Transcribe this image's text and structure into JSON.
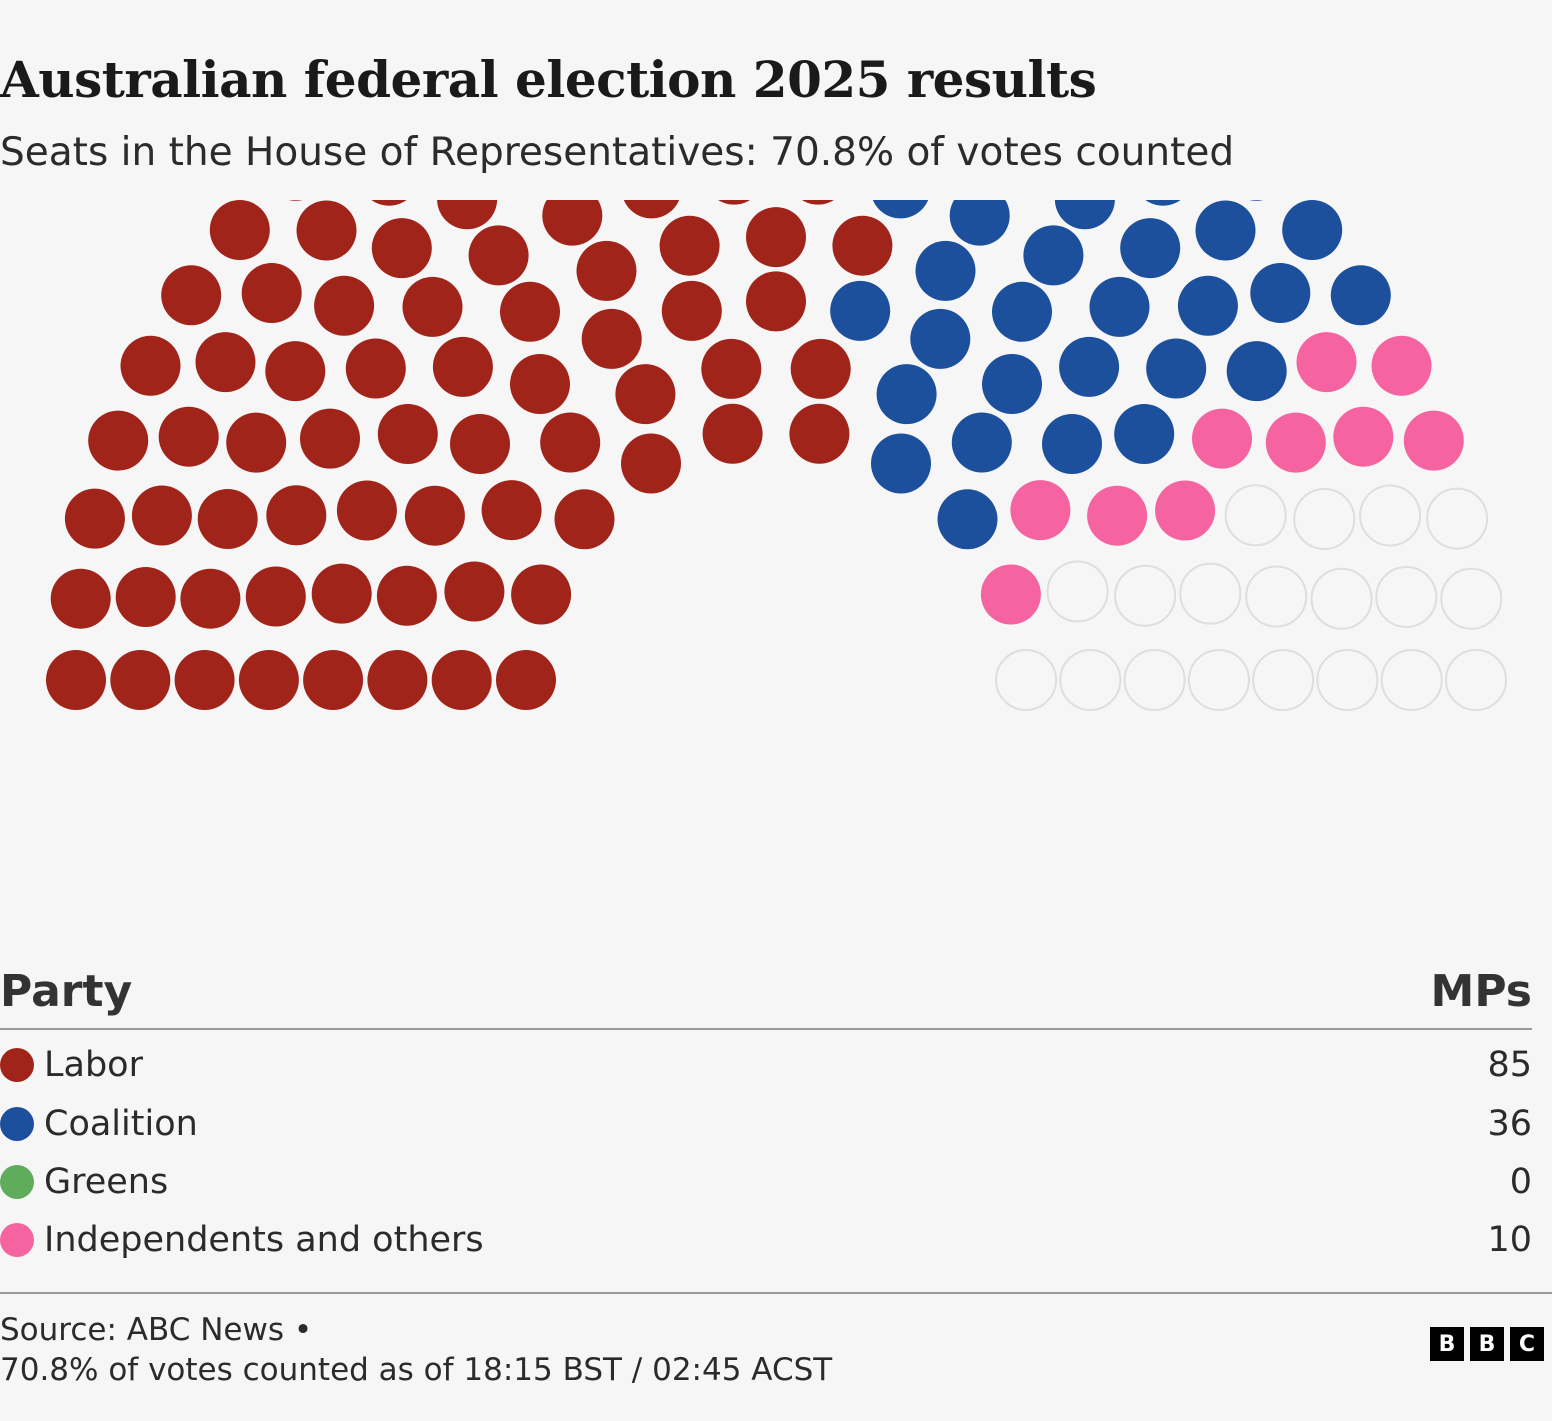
{
  "header": {
    "title": "Australian federal election 2025 results",
    "subtitle": "Seats in the House of Representatives: 70.8% of votes counted"
  },
  "legend": {
    "party_header": "Party",
    "mps_header": "MPs"
  },
  "chart_data": {
    "type": "parliament",
    "title": "Australian federal election 2025 results",
    "subtitle": "Seats in the House of Representatives: 70.8% of votes counted",
    "total_seats": 150,
    "series": [
      {
        "name": "Labor",
        "value": 85,
        "color": "#a1241a"
      },
      {
        "name": "Coalition",
        "value": 36,
        "color": "#1c4f9c"
      },
      {
        "name": "Greens",
        "value": 0,
        "color": "#5eac5c"
      },
      {
        "name": "Independents and others",
        "value": 10,
        "color": "#f564a0"
      }
    ],
    "undeclared_color": "#ebebeb"
  },
  "footer": {
    "source": "Source: ABC News •",
    "note": "70.8% of votes counted as of 18:15 BST / 02:45 ACST",
    "logo": [
      "B",
      "B",
      "C"
    ]
  }
}
